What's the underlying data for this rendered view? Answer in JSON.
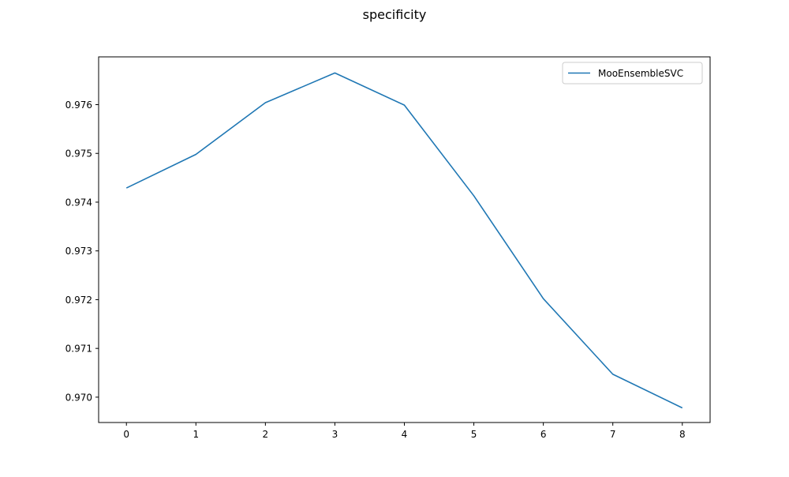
{
  "chart_data": {
    "type": "line",
    "title": "specificity",
    "xlabel": "",
    "ylabel": "",
    "x": [
      0,
      1,
      2,
      3,
      4,
      5,
      6,
      7,
      8
    ],
    "xlim": [
      -0.4,
      8.4
    ],
    "ylim": [
      0.96948,
      0.97698
    ],
    "xticks": [
      0,
      1,
      2,
      3,
      4,
      5,
      6,
      7,
      8
    ],
    "yticks": [
      "0.970",
      "0.971",
      "0.972",
      "0.973",
      "0.974",
      "0.975",
      "0.976"
    ],
    "grid": false,
    "legend": "top-right",
    "series": [
      {
        "name": "MooEnsembleSVC",
        "color": "#1f77b4",
        "values": [
          0.97429,
          0.97498,
          0.97604,
          0.97665,
          0.97599,
          0.97413,
          0.97202,
          0.97047,
          0.96978
        ]
      }
    ]
  }
}
